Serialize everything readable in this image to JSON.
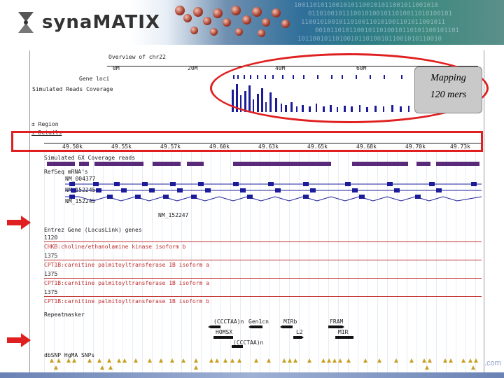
{
  "brand": {
    "syna": "syna",
    "matix": "MATIX",
    "dotcom": ".com"
  },
  "overview": {
    "title": "Overview of chr22",
    "ticks": [
      "0M",
      "20M",
      "40M",
      "60M"
    ],
    "gene_loci": "Gene loci",
    "sim_reads": "Simulated Reads Coverage"
  },
  "callout": {
    "line1": "Mapping",
    "line2": "120 mers"
  },
  "controls": {
    "region": "± Region",
    "details": "± Details"
  },
  "scale_ticks": [
    "49.50k",
    "49.55k",
    "49.57k",
    "49.60k",
    "49.63k",
    "49.65k",
    "49.68k",
    "49.70k",
    "49.73k"
  ],
  "tracks": {
    "coverage": "Simulated 6X Coverage reads",
    "refseq": "RefSeq mRNA's",
    "refseq_ids": [
      "NM_004377",
      "NM_152245",
      "NM_152245",
      "NM_152247"
    ],
    "entrez": "Entrez Gene (LocusLink) genes",
    "entrez_rows": [
      {
        "id": "1120",
        "desc": "CHKB:choline/ethanolamine kinase isoform b"
      },
      {
        "id": "1375",
        "desc": "CPT1B:carnitine palmitoyltransferase 1B isoform a"
      },
      {
        "id": "1375",
        "desc": "CPT1B:carnitine palmitoyltransferase 1B isoform a"
      },
      {
        "id": "1375",
        "desc": "CPT1B:carnitine palmitoyltransferase 1B isoform b"
      }
    ],
    "repeat": "Repeatmasker",
    "repeat_labels": [
      "(CCCTAA)n",
      "Gen1cn",
      "MIRb",
      "FRAM",
      "HOMSX",
      "L2",
      "MIR",
      "(CCCTAA)n"
    ],
    "snp": "dbSNP HgMA SNPs"
  },
  "colors": {
    "accent_red": "#e02020",
    "bar_blue": "#1c1c9a",
    "track_purple": "#5a2a7a",
    "snp_gold": "#c8a020"
  }
}
